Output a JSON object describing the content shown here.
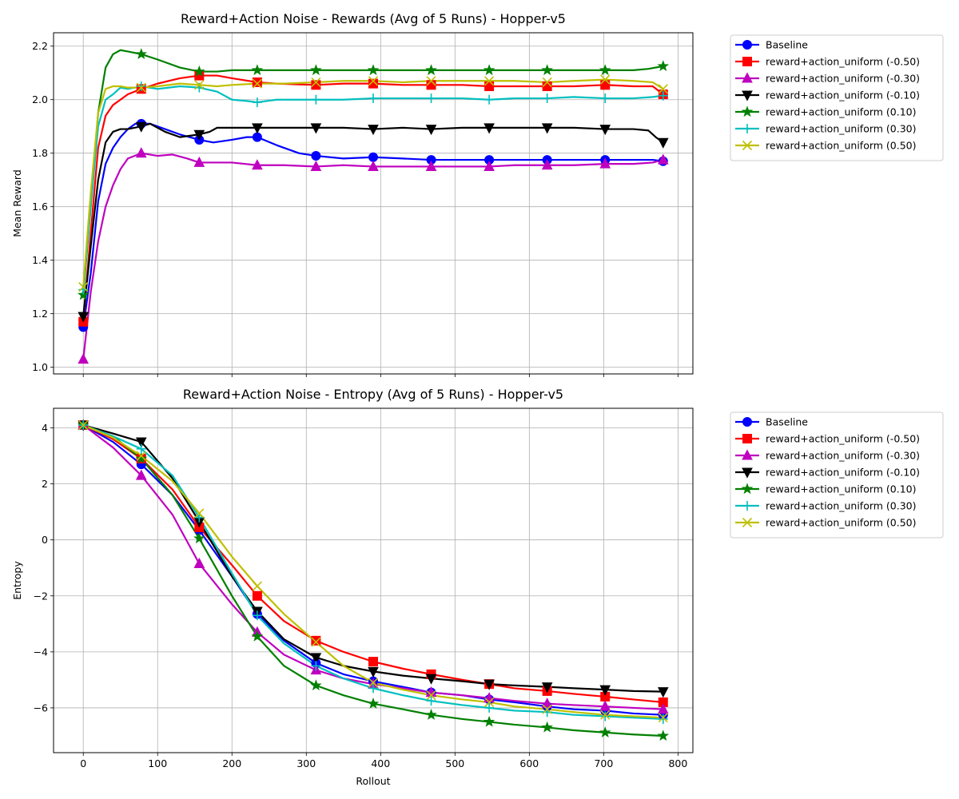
{
  "chart_data": [
    {
      "type": "line",
      "title": "Reward+Action Noise - Rewards (Avg of 5 Runs) - Hopper-v5",
      "xlabel": "",
      "ylabel": "Mean Reward",
      "xlim": [
        -40,
        820
      ],
      "ylim": [
        0.975,
        2.25
      ],
      "xticks": [
        0,
        100,
        200,
        300,
        400,
        500,
        600,
        700,
        800
      ],
      "yticks": [
        1.0,
        1.2,
        1.4,
        1.6,
        1.8,
        2.0,
        2.2
      ],
      "ytick_labels": [
        "1.0",
        "1.2",
        "1.4",
        "1.6",
        "1.8",
        "2.0",
        "2.2"
      ],
      "xtick_labels_visible": false,
      "grid": true,
      "legend_position": "outside-right-top",
      "series": [
        {
          "name": "Baseline",
          "color": "#0000ff",
          "marker": "circle",
          "x": [
            0,
            10,
            20,
            30,
            40,
            50,
            60,
            70,
            78,
            90,
            110,
            130,
            156,
            175,
            200,
            220,
            234,
            260,
            290,
            313,
            350,
            390,
            430,
            468,
            510,
            546,
            580,
            624,
            660,
            702,
            740,
            766,
            780
          ],
          "y": [
            1.15,
            1.35,
            1.62,
            1.76,
            1.82,
            1.86,
            1.89,
            1.91,
            1.91,
            1.91,
            1.89,
            1.87,
            1.85,
            1.84,
            1.85,
            1.86,
            1.86,
            1.83,
            1.8,
            1.79,
            1.78,
            1.785,
            1.78,
            1.775,
            1.775,
            1.775,
            1.775,
            1.775,
            1.775,
            1.775,
            1.775,
            1.775,
            1.77
          ]
        },
        {
          "name": "reward+action_uniform (-0.50)",
          "color": "#ff0000",
          "marker": "square",
          "x": [
            0,
            10,
            20,
            30,
            40,
            50,
            60,
            78,
            100,
            130,
            156,
            180,
            200,
            234,
            260,
            313,
            350,
            390,
            430,
            468,
            510,
            546,
            580,
            624,
            660,
            702,
            740,
            766,
            780
          ],
          "y": [
            1.17,
            1.5,
            1.82,
            1.94,
            1.98,
            2.0,
            2.02,
            2.04,
            2.06,
            2.08,
            2.09,
            2.09,
            2.08,
            2.065,
            2.06,
            2.055,
            2.06,
            2.06,
            2.055,
            2.055,
            2.055,
            2.05,
            2.05,
            2.05,
            2.05,
            2.055,
            2.05,
            2.05,
            2.02
          ]
        },
        {
          "name": "reward+action_uniform (-0.30)",
          "color": "#bf00bf",
          "marker": "triangle-up",
          "x": [
            0,
            10,
            20,
            30,
            40,
            50,
            60,
            78,
            100,
            120,
            140,
            156,
            180,
            200,
            234,
            270,
            313,
            350,
            390,
            430,
            468,
            510,
            546,
            580,
            624,
            660,
            702,
            740,
            766,
            780
          ],
          "y": [
            1.03,
            1.28,
            1.47,
            1.6,
            1.68,
            1.74,
            1.78,
            1.8,
            1.79,
            1.795,
            1.78,
            1.765,
            1.765,
            1.765,
            1.755,
            1.755,
            1.75,
            1.755,
            1.75,
            1.75,
            1.75,
            1.75,
            1.75,
            1.755,
            1.755,
            1.755,
            1.76,
            1.76,
            1.765,
            1.775
          ]
        },
        {
          "name": "reward+action_uniform (-0.10)",
          "color": "#000000",
          "marker": "triangle-down",
          "x": [
            0,
            10,
            20,
            30,
            40,
            50,
            60,
            78,
            90,
            110,
            130,
            156,
            170,
            180,
            200,
            234,
            270,
            313,
            350,
            390,
            430,
            468,
            510,
            546,
            580,
            624,
            660,
            702,
            740,
            760,
            770,
            780
          ],
          "y": [
            1.19,
            1.45,
            1.7,
            1.84,
            1.88,
            1.89,
            1.89,
            1.9,
            1.91,
            1.88,
            1.86,
            1.87,
            1.88,
            1.895,
            1.895,
            1.895,
            1.895,
            1.895,
            1.895,
            1.89,
            1.895,
            1.89,
            1.895,
            1.895,
            1.895,
            1.895,
            1.895,
            1.89,
            1.89,
            1.885,
            1.86,
            1.84
          ]
        },
        {
          "name": "reward+action_uniform (0.10)",
          "color": "#008000",
          "marker": "star",
          "x": [
            0,
            10,
            20,
            30,
            40,
            50,
            60,
            78,
            100,
            130,
            156,
            180,
            200,
            234,
            270,
            313,
            350,
            390,
            430,
            468,
            510,
            546,
            580,
            624,
            660,
            702,
            740,
            760,
            780
          ],
          "y": [
            1.27,
            1.6,
            1.95,
            2.12,
            2.17,
            2.185,
            2.18,
            2.17,
            2.15,
            2.12,
            2.105,
            2.105,
            2.11,
            2.11,
            2.11,
            2.11,
            2.11,
            2.11,
            2.11,
            2.11,
            2.11,
            2.11,
            2.11,
            2.11,
            2.11,
            2.11,
            2.11,
            2.115,
            2.125
          ]
        },
        {
          "name": "reward+action_uniform (0.30)",
          "color": "#00bfbf",
          "marker": "plus",
          "x": [
            0,
            10,
            20,
            30,
            40,
            50,
            60,
            78,
            100,
            130,
            156,
            180,
            200,
            220,
            234,
            260,
            290,
            313,
            350,
            390,
            430,
            468,
            510,
            546,
            580,
            624,
            660,
            702,
            740,
            766,
            780
          ],
          "y": [
            1.29,
            1.6,
            1.9,
            2.0,
            2.02,
            2.045,
            2.04,
            2.05,
            2.04,
            2.05,
            2.045,
            2.03,
            2.0,
            1.995,
            1.99,
            2.0,
            2.0,
            2.0,
            2.0,
            2.005,
            2.005,
            2.005,
            2.005,
            2.0,
            2.005,
            2.005,
            2.01,
            2.005,
            2.005,
            2.01,
            2.015
          ]
        },
        {
          "name": "reward+action_uniform (0.50)",
          "color": "#bfbf00",
          "marker": "x",
          "x": [
            0,
            10,
            20,
            30,
            40,
            50,
            60,
            78,
            100,
            130,
            156,
            180,
            200,
            234,
            270,
            313,
            350,
            390,
            430,
            468,
            510,
            546,
            580,
            624,
            660,
            702,
            740,
            766,
            780
          ],
          "y": [
            1.3,
            1.65,
            1.95,
            2.04,
            2.05,
            2.05,
            2.045,
            2.045,
            2.05,
            2.06,
            2.055,
            2.05,
            2.055,
            2.06,
            2.06,
            2.065,
            2.07,
            2.07,
            2.065,
            2.07,
            2.07,
            2.07,
            2.07,
            2.065,
            2.07,
            2.075,
            2.07,
            2.065,
            2.04
          ]
        }
      ]
    },
    {
      "type": "line",
      "title": "Reward+Action Noise - Entropy (Avg of 5 Runs) - Hopper-v5",
      "xlabel": "Rollout",
      "ylabel": "Entropy",
      "xlim": [
        -40,
        820
      ],
      "ylim": [
        -7.6,
        4.7
      ],
      "xticks": [
        0,
        100,
        200,
        300,
        400,
        500,
        600,
        700,
        800
      ],
      "xtick_labels": [
        "0",
        "100",
        "200",
        "300",
        "400",
        "500",
        "600",
        "700",
        "800"
      ],
      "yticks": [
        -6,
        -4,
        -2,
        0,
        2,
        4
      ],
      "ytick_labels": [
        "−6",
        "−4",
        "−2",
        "0",
        "2",
        "4"
      ],
      "grid": true,
      "legend_position": "outside-right-top",
      "series": [
        {
          "name": "Baseline",
          "color": "#0000ff",
          "marker": "circle",
          "x": [
            0,
            40,
            78,
            120,
            156,
            200,
            234,
            270,
            313,
            350,
            390,
            430,
            468,
            510,
            546,
            580,
            624,
            660,
            702,
            740,
            780
          ],
          "y": [
            4.1,
            3.5,
            2.7,
            1.6,
            0.35,
            -1.3,
            -2.65,
            -3.6,
            -4.4,
            -4.8,
            -5.05,
            -5.25,
            -5.45,
            -5.55,
            -5.7,
            -5.8,
            -5.95,
            -6.05,
            -6.1,
            -6.2,
            -6.25
          ]
        },
        {
          "name": "reward+action_uniform (-0.50)",
          "color": "#ff0000",
          "marker": "square",
          "x": [
            0,
            40,
            78,
            120,
            156,
            200,
            234,
            270,
            313,
            350,
            390,
            430,
            468,
            510,
            546,
            580,
            624,
            660,
            702,
            740,
            780
          ],
          "y": [
            4.1,
            3.6,
            2.9,
            1.8,
            0.45,
            -0.9,
            -2.0,
            -2.9,
            -3.6,
            -4.0,
            -4.35,
            -4.6,
            -4.8,
            -5.0,
            -5.15,
            -5.3,
            -5.4,
            -5.5,
            -5.6,
            -5.7,
            -5.8
          ]
        },
        {
          "name": "reward+action_uniform (-0.30)",
          "color": "#bf00bf",
          "marker": "triangle-up",
          "x": [
            0,
            40,
            78,
            120,
            156,
            200,
            234,
            270,
            313,
            350,
            390,
            430,
            468,
            510,
            546,
            580,
            624,
            660,
            702,
            740,
            780
          ],
          "y": [
            4.1,
            3.3,
            2.3,
            0.9,
            -0.85,
            -2.3,
            -3.3,
            -4.1,
            -4.65,
            -4.95,
            -5.15,
            -5.3,
            -5.45,
            -5.55,
            -5.65,
            -5.75,
            -5.85,
            -5.9,
            -5.95,
            -6.0,
            -6.05
          ]
        },
        {
          "name": "reward+action_uniform (-0.10)",
          "color": "#000000",
          "marker": "triangle-down",
          "x": [
            0,
            40,
            78,
            120,
            156,
            200,
            234,
            270,
            313,
            350,
            390,
            430,
            468,
            510,
            546,
            580,
            624,
            660,
            702,
            740,
            780
          ],
          "y": [
            4.1,
            3.8,
            3.5,
            2.2,
            0.65,
            -1.3,
            -2.55,
            -3.55,
            -4.2,
            -4.5,
            -4.7,
            -4.85,
            -4.95,
            -5.05,
            -5.15,
            -5.2,
            -5.25,
            -5.3,
            -5.35,
            -5.4,
            -5.42
          ]
        },
        {
          "name": "reward+action_uniform (0.10)",
          "color": "#008000",
          "marker": "star",
          "x": [
            0,
            40,
            78,
            120,
            156,
            200,
            234,
            270,
            313,
            350,
            390,
            430,
            468,
            510,
            546,
            580,
            624,
            660,
            702,
            740,
            780
          ],
          "y": [
            4.1,
            3.7,
            2.9,
            1.6,
            0.05,
            -2.0,
            -3.45,
            -4.5,
            -5.2,
            -5.55,
            -5.85,
            -6.05,
            -6.25,
            -6.4,
            -6.5,
            -6.6,
            -6.7,
            -6.8,
            -6.88,
            -6.95,
            -7.0
          ]
        },
        {
          "name": "reward+action_uniform (0.30)",
          "color": "#00bfbf",
          "marker": "plus",
          "x": [
            0,
            40,
            78,
            120,
            156,
            200,
            234,
            270,
            313,
            350,
            390,
            430,
            468,
            510,
            546,
            580,
            624,
            660,
            702,
            740,
            780
          ],
          "y": [
            4.1,
            3.7,
            3.25,
            2.3,
            0.8,
            -1.2,
            -2.7,
            -3.7,
            -4.5,
            -4.95,
            -5.3,
            -5.55,
            -5.75,
            -5.9,
            -6.0,
            -6.1,
            -6.15,
            -6.25,
            -6.3,
            -6.35,
            -6.4
          ]
        },
        {
          "name": "reward+action_uniform (0.50)",
          "color": "#bfbf00",
          "marker": "x",
          "x": [
            0,
            40,
            78,
            120,
            156,
            200,
            234,
            270,
            313,
            350,
            390,
            430,
            468,
            510,
            546,
            580,
            624,
            660,
            702,
            740,
            780
          ],
          "y": [
            4.1,
            3.65,
            3.0,
            2.1,
            0.95,
            -0.6,
            -1.65,
            -2.65,
            -3.65,
            -4.5,
            -5.1,
            -5.35,
            -5.55,
            -5.7,
            -5.8,
            -5.95,
            -6.05,
            -6.15,
            -6.25,
            -6.3,
            -6.35
          ]
        }
      ]
    }
  ]
}
